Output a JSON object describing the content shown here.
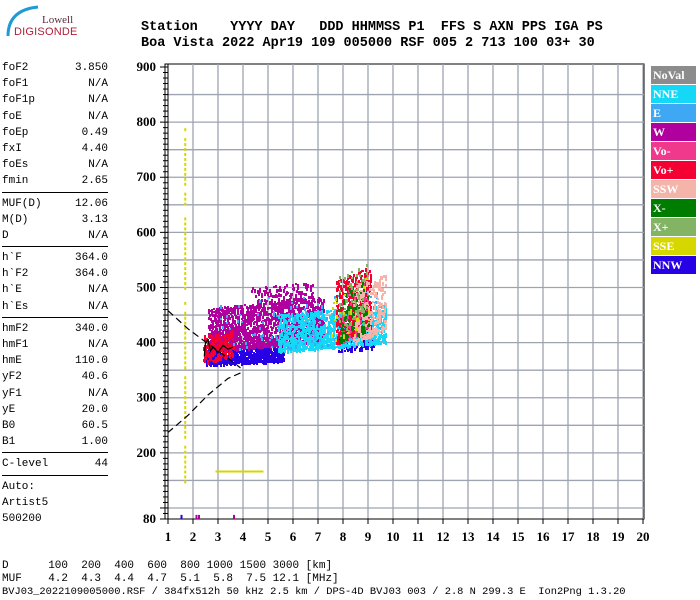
{
  "logo": {
    "line1": "Lowell",
    "line2": "DIGISONDE"
  },
  "header": {
    "labels": "Station    YYYY DAY   DDD HHMMSS P1  FFS S AXN PPS IGA PS",
    "values": "Boa Vista 2022 Apr19 109 005000 RSF 005 2 713 100 03+ 30"
  },
  "panel": {
    "groups": [
      [
        [
          "foF2",
          "3.850"
        ],
        [
          "foF1",
          "N/A"
        ],
        [
          "foF1p",
          "N/A"
        ],
        [
          "foE",
          "N/A"
        ],
        [
          "foEp",
          "0.49"
        ],
        [
          "fxI",
          "4.40"
        ],
        [
          "foEs",
          "N/A"
        ],
        [
          "fmin",
          "2.65"
        ]
      ],
      [
        [
          "MUF(D)",
          "12.06"
        ],
        [
          "M(D)",
          "3.13"
        ],
        [
          "D",
          "N/A"
        ]
      ],
      [
        [
          "h`F",
          "364.0"
        ],
        [
          "h`F2",
          "364.0"
        ],
        [
          "h`E",
          "N/A"
        ],
        [
          "h`Es",
          "N/A"
        ]
      ],
      [
        [
          "hmF2",
          "340.0"
        ],
        [
          "hmF1",
          "N/A"
        ],
        [
          "hmE",
          "110.0"
        ],
        [
          "yF2",
          "40.6"
        ],
        [
          "yF1",
          "N/A"
        ],
        [
          "yE",
          "20.0"
        ],
        [
          "B0",
          "60.5"
        ],
        [
          "B1",
          "1.00"
        ]
      ],
      [
        [
          "C-level",
          "44"
        ]
      ]
    ],
    "auto": [
      "Auto:",
      "Artist5",
      "500200"
    ]
  },
  "legend": [
    {
      "label": "NoVal",
      "color": "#8c8c8c"
    },
    {
      "label": "NNE",
      "color": "#14d8f5"
    },
    {
      "label": "E",
      "color": "#3ea8f5"
    },
    {
      "label": "W",
      "color": "#b0009e"
    },
    {
      "label": "Vo-",
      "color": "#f0388c"
    },
    {
      "label": "Vo+",
      "color": "#f50032"
    },
    {
      "label": "SSW",
      "color": "#f5b4aa"
    },
    {
      "label": "X-",
      "color": "#007d00"
    },
    {
      "label": "X+",
      "color": "#82b464"
    },
    {
      "label": "SSE",
      "color": "#d7d700"
    },
    {
      "label": "NNW",
      "color": "#2800e6"
    }
  ],
  "footer": {
    "d_row": "D      100  200  400  600  800 1000 1500 3000 [km]",
    "muf_row": "MUF    4.2  4.3  4.4  4.7  5.1  5.8  7.5 12.1 [MHz]",
    "info": "BVJ03_2022109005000.RSF / 384fx512h 50 kHz 2.5 km / DPS-4D BVJ03 003 / 2.8 N 299.3 E  Ion2Png 1.3.20"
  },
  "chart_data": {
    "type": "scatter",
    "xlim": [
      1,
      20
    ],
    "ylim": [
      80,
      900
    ],
    "xticks": [
      1,
      2,
      3,
      4,
      5,
      6,
      7,
      8,
      9,
      10,
      11,
      12,
      13,
      14,
      15,
      16,
      17,
      18,
      19,
      20
    ],
    "yticks": [
      900,
      800,
      700,
      600,
      500,
      400,
      300,
      200,
      80
    ],
    "grid": true,
    "legend_position": "right",
    "clusters": [
      {
        "series": "NNW",
        "f": [
          2.5,
          5.6
        ],
        "h": [
          362,
          395
        ],
        "n": 700
      },
      {
        "series": "NNW",
        "f": [
          7.8,
          9.2
        ],
        "h": [
          385,
          425
        ],
        "n": 150
      },
      {
        "series": "W",
        "f": [
          2.6,
          7.2
        ],
        "h": [
          385,
          485
        ],
        "n": 1600
      },
      {
        "series": "W",
        "f": [
          4.3,
          6.8
        ],
        "h": [
          470,
          510
        ],
        "n": 120
      },
      {
        "series": "NNE",
        "f": [
          5.4,
          9.7
        ],
        "h": [
          385,
          470
        ],
        "n": 1100
      },
      {
        "series": "E",
        "f": [
          3,
          9.5
        ],
        "h": [
          380,
          500
        ],
        "n": 120
      },
      {
        "series": "Vo+",
        "f": [
          2.4,
          3.6
        ],
        "h": [
          365,
          425
        ],
        "n": 200
      },
      {
        "series": "Vo+",
        "f": [
          7.7,
          9.1
        ],
        "h": [
          400,
          540
        ],
        "n": 450
      },
      {
        "series": "Vo-",
        "f": [
          7.9,
          9
        ],
        "h": [
          400,
          520
        ],
        "n": 80
      },
      {
        "series": "SSW",
        "f": [
          8.4,
          9.7
        ],
        "h": [
          400,
          530
        ],
        "n": 260
      },
      {
        "series": "X-",
        "f": [
          7.8,
          9
        ],
        "h": [
          400,
          520
        ],
        "n": 90
      },
      {
        "series": "X+",
        "f": [
          7.8,
          9
        ],
        "h": [
          410,
          560
        ],
        "n": 70
      },
      {
        "series": "SSE",
        "f": [
          7.5,
          9
        ],
        "h": [
          400,
          520
        ],
        "n": 25
      }
    ],
    "sse_vertical_trace": {
      "f": 1.65,
      "h": [
        150,
        790
      ]
    },
    "sse_horizontal_trace": {
      "h": 168,
      "f": [
        2.9,
        4.8
      ]
    },
    "bottom_echoes": [
      {
        "series": "NNW",
        "f": 1.5,
        "h": 82
      },
      {
        "series": "W",
        "f": 2.1,
        "h": 82
      },
      {
        "series": "W",
        "f": 2.2,
        "h": 82
      },
      {
        "series": "W",
        "f": 3.6,
        "h": 82
      }
    ],
    "profile_upper_dashed": [
      [
        1,
        458
      ],
      [
        1.8,
        425
      ],
      [
        2.6,
        398
      ],
      [
        3.4,
        372
      ],
      [
        3.9,
        354
      ]
    ],
    "profile_lower_dashed": [
      [
        3.9,
        345
      ],
      [
        3.4,
        335
      ],
      [
        2.6,
        305
      ],
      [
        1.8,
        268
      ],
      [
        1,
        237
      ]
    ],
    "trace_solid": [
      [
        2.45,
        375
      ],
      [
        2.5,
        400
      ],
      [
        2.6,
        405
      ],
      [
        2.7,
        385
      ],
      [
        2.8,
        392
      ],
      [
        3.0,
        382
      ],
      [
        3.2,
        395
      ],
      [
        3.4,
        388
      ],
      [
        3.6,
        392
      ]
    ]
  }
}
